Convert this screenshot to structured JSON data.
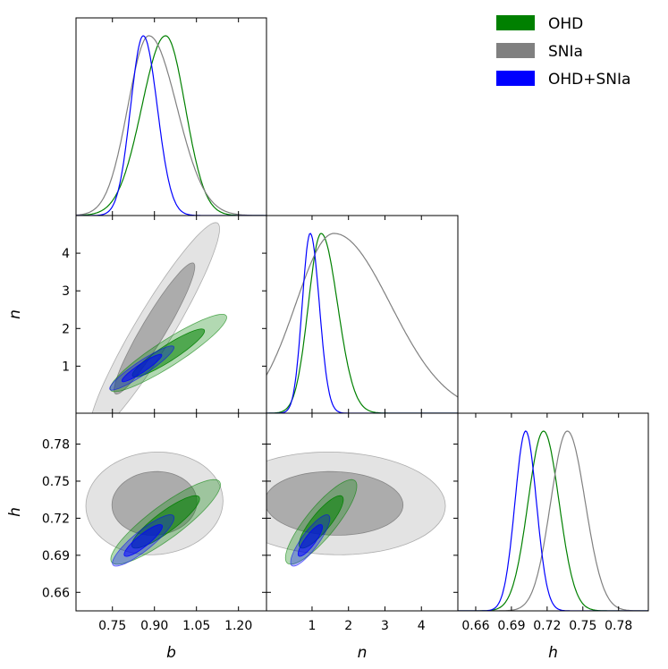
{
  "colors": {
    "ohd": "#008000",
    "snia": "#808080",
    "combined": "#0000ff"
  },
  "legend": {
    "items": [
      {
        "label": "OHD",
        "color": "#008000"
      },
      {
        "label": "SNIa",
        "color": "#808080"
      },
      {
        "label": "OHD+SNIa",
        "color": "#0000ff"
      }
    ]
  },
  "chart_data": {
    "type": "triangle-corner-plot",
    "parameters": [
      {
        "name": "b",
        "label": "b",
        "range": [
          0.62,
          1.3
        ],
        "ticks": [
          0.75,
          0.9,
          1.05,
          1.2
        ],
        "tick_labels": [
          "0.75",
          "0.90",
          "1.05",
          "1.20"
        ]
      },
      {
        "name": "n",
        "label": "n",
        "range": [
          -0.25,
          5.0
        ],
        "ticks": [
          1,
          2,
          3,
          4
        ],
        "tick_labels": [
          "1",
          "2",
          "3",
          "4"
        ]
      },
      {
        "name": "h",
        "label": "h",
        "range": [
          0.645,
          0.805
        ],
        "ticks": [
          0.66,
          0.69,
          0.72,
          0.75,
          0.78
        ],
        "tick_labels": [
          "0.66",
          "0.69",
          "0.72",
          "0.75",
          "0.78"
        ]
      }
    ],
    "marginals": [
      {
        "param": "b",
        "series": [
          {
            "name": "OHD",
            "peak": 0.94,
            "sigma_left": 0.085,
            "sigma_right": 0.07
          },
          {
            "name": "SNIa",
            "peak": 0.88,
            "sigma_left": 0.075,
            "sigma_right": 0.1
          },
          {
            "name": "OHD+SNIa",
            "peak": 0.86,
            "sigma_left": 0.045,
            "sigma_right": 0.05
          }
        ]
      },
      {
        "param": "n",
        "series": [
          {
            "name": "OHD",
            "peak": 1.25,
            "sigma_left": 0.35,
            "sigma_right": 0.45
          },
          {
            "name": "SNIa",
            "peak": 1.6,
            "sigma_left": 1.05,
            "sigma_right": 1.55
          },
          {
            "name": "OHD+SNIa",
            "peak": 0.95,
            "sigma_left": 0.22,
            "sigma_right": 0.25
          }
        ]
      },
      {
        "param": "h",
        "series": [
          {
            "name": "OHD",
            "peak": 0.717,
            "sigma_left": 0.013,
            "sigma_right": 0.013
          },
          {
            "name": "SNIa",
            "peak": 0.737,
            "sigma_left": 0.014,
            "sigma_right": 0.015
          },
          {
            "name": "OHD+SNIa",
            "peak": 0.702,
            "sigma_left": 0.009,
            "sigma_right": 0.009
          }
        ]
      }
    ],
    "contours": [
      {
        "x": "b",
        "y": "n",
        "series": [
          {
            "name": "SNIa",
            "center": [
              0.9,
              2.0
            ],
            "sd": [
              0.095,
              1.15
            ],
            "corr": 0.94
          },
          {
            "name": "OHD",
            "center": [
              0.95,
              1.35
            ],
            "sd": [
              0.085,
              0.42
            ],
            "corr": 0.92
          },
          {
            "name": "OHD+SNIa",
            "center": [
              0.855,
              0.95
            ],
            "sd": [
              0.047,
              0.24
            ],
            "corr": 0.93
          }
        ]
      },
      {
        "x": "b",
        "y": "h",
        "series": [
          {
            "name": "SNIa",
            "center": [
              0.9,
              0.732
            ],
            "sd": [
              0.1,
              0.017
            ],
            "corr": 0.05
          },
          {
            "name": "OHD",
            "center": [
              0.94,
              0.717
            ],
            "sd": [
              0.08,
              0.014
            ],
            "corr": 0.88
          },
          {
            "name": "OHD+SNIa",
            "center": [
              0.86,
              0.702
            ],
            "sd": [
              0.045,
              0.0085
            ],
            "corr": 0.88
          }
        ]
      },
      {
        "x": "n",
        "y": "h",
        "series": [
          {
            "name": "SNIa",
            "center": [
              1.6,
              0.732
            ],
            "sd": [
              1.25,
              0.017
            ],
            "corr": -0.05
          },
          {
            "name": "OHD",
            "center": [
              1.25,
              0.717
            ],
            "sd": [
              0.4,
              0.014
            ],
            "corr": 0.85
          },
          {
            "name": "OHD+SNIa",
            "center": [
              0.95,
              0.702
            ],
            "sd": [
              0.22,
              0.0085
            ],
            "corr": 0.85
          }
        ]
      }
    ],
    "contour_levels": [
      "68%",
      "95%"
    ]
  }
}
